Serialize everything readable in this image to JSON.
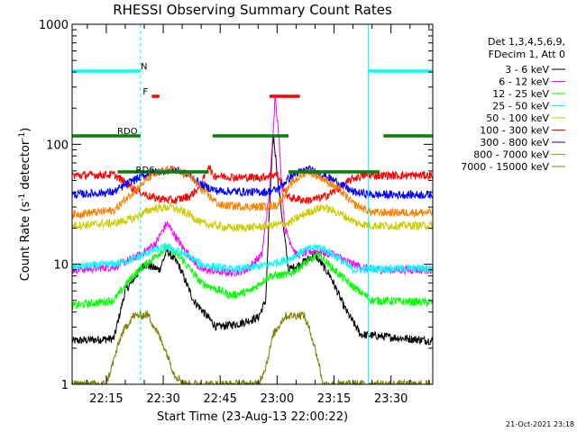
{
  "chart_data": {
    "type": "line",
    "title": "RHESSI Observing Summary Count Rates",
    "xlabel": "Start Time (23-Aug-13 22:00:22)",
    "ylabel_prefix": "Count Rate (s",
    "ylabel_sup1": "-1",
    "ylabel_mid": " detector",
    "ylabel_sup2": "-1",
    "ylabel_suffix": ")",
    "ylog": true,
    "ylim": [
      1,
      1000
    ],
    "xlim_min": [
      6,
      101
    ],
    "yticks": [
      {
        "v": 1,
        "label": "1"
      },
      {
        "v": 10,
        "label": "10"
      },
      {
        "v": 100,
        "label": "100"
      },
      {
        "v": 1000,
        "label": "1000"
      }
    ],
    "xticks": [
      {
        "m": 15,
        "label": "22:15"
      },
      {
        "m": 30,
        "label": "22:30"
      },
      {
        "m": 45,
        "label": "22:45"
      },
      {
        "m": 60,
        "label": "23:00"
      },
      {
        "m": 75,
        "label": "23:15"
      },
      {
        "m": 90,
        "label": "23:30"
      }
    ],
    "legend_header": [
      "Det 1,3,4,5,6,9,",
      "FDecim 1, Att 0"
    ],
    "legend_placement": "right",
    "timestamp": "21-Oct-2021 23:18",
    "state_bars": [
      {
        "label": "N",
        "color": "#00ffff",
        "y": 0.87,
        "ranges": [
          [
            6,
            24
          ],
          [
            84,
            101
          ]
        ]
      },
      {
        "label": "F",
        "color": "#ff0000",
        "y": 0.8,
        "ranges": [
          [
            27,
            29
          ],
          [
            58,
            66
          ]
        ]
      },
      {
        "label": "RDO",
        "color": "#008000",
        "y": 0.69,
        "ranges": [
          [
            6,
            24
          ],
          [
            43,
            63
          ],
          [
            88,
            101
          ]
        ]
      },
      {
        "label": "RD6",
        "color": "#008000",
        "y": 0.59,
        "ranges": [
          [
            18,
            42
          ],
          [
            63,
            87
          ]
        ]
      }
    ],
    "vlines": [
      {
        "m": 6,
        "color": "#00ffff",
        "dashed": false
      },
      {
        "m": 24,
        "color": "#00ffff",
        "dashed": true
      },
      {
        "m": 84,
        "color": "#00ffff",
        "dashed": false
      },
      {
        "m": 101,
        "color": "#00ffff",
        "dashed": true
      }
    ],
    "series": [
      {
        "name": "3 - 6 keV",
        "color": "#000000",
        "points": [
          [
            6,
            2.3
          ],
          [
            17,
            2.4
          ],
          [
            20,
            6
          ],
          [
            25,
            10
          ],
          [
            29,
            9
          ],
          [
            31,
            13
          ],
          [
            34,
            10
          ],
          [
            38,
            5
          ],
          [
            44,
            3
          ],
          [
            50,
            3.2
          ],
          [
            55,
            3.6
          ],
          [
            57,
            5
          ],
          [
            58,
            30
          ],
          [
            59,
            120
          ],
          [
            61,
            30
          ],
          [
            63,
            9
          ],
          [
            66,
            10
          ],
          [
            70,
            12
          ],
          [
            74,
            8
          ],
          [
            78,
            4.2
          ],
          [
            82,
            2.6
          ],
          [
            101,
            2.3
          ]
        ]
      },
      {
        "name": "6 - 12 keV",
        "color": "#ff00ff",
        "points": [
          [
            6,
            9
          ],
          [
            17,
            9.5
          ],
          [
            24,
            12
          ],
          [
            28,
            15
          ],
          [
            31,
            22
          ],
          [
            35,
            14
          ],
          [
            40,
            9
          ],
          [
            48,
            8.5
          ],
          [
            52,
            9
          ],
          [
            56,
            12
          ],
          [
            58,
            40
          ],
          [
            59.5,
            260
          ],
          [
            60.5,
            110
          ],
          [
            62,
            20
          ],
          [
            65,
            12
          ],
          [
            70,
            13
          ],
          [
            75,
            12
          ],
          [
            80,
            10
          ],
          [
            85,
            9
          ],
          [
            101,
            9
          ]
        ]
      },
      {
        "name": "12 - 25 keV",
        "color": "#00ff00",
        "points": [
          [
            6,
            4.5
          ],
          [
            17,
            5
          ],
          [
            22,
            8
          ],
          [
            27,
            11
          ],
          [
            31,
            14
          ],
          [
            35,
            11
          ],
          [
            40,
            7
          ],
          [
            48,
            5.5
          ],
          [
            53,
            6
          ],
          [
            58,
            8
          ],
          [
            63,
            8.2
          ],
          [
            67,
            10
          ],
          [
            71,
            12
          ],
          [
            75,
            9
          ],
          [
            80,
            6.5
          ],
          [
            85,
            5
          ],
          [
            101,
            4.8
          ]
        ]
      },
      {
        "name": "25 - 50 keV",
        "color": "#00ffff",
        "points": [
          [
            6,
            9.5
          ],
          [
            17,
            10
          ],
          [
            22,
            11
          ],
          [
            27,
            13
          ],
          [
            31,
            14
          ],
          [
            36,
            12
          ],
          [
            40,
            10
          ],
          [
            48,
            9
          ],
          [
            54,
            9.5
          ],
          [
            58,
            10
          ],
          [
            63,
            11
          ],
          [
            67,
            13
          ],
          [
            71,
            14
          ],
          [
            75,
            12
          ],
          [
            80,
            9
          ],
          [
            85,
            9.2
          ],
          [
            101,
            9.2
          ]
        ]
      },
      {
        "name": "50 - 100 keV",
        "color": "#cccc00",
        "points": [
          [
            6,
            21
          ],
          [
            17,
            22
          ],
          [
            22,
            24
          ],
          [
            27,
            29
          ],
          [
            32,
            30
          ],
          [
            37,
            26
          ],
          [
            40,
            22
          ],
          [
            48,
            20
          ],
          [
            55,
            20.5
          ],
          [
            58,
            21
          ],
          [
            63,
            22
          ],
          [
            68,
            27
          ],
          [
            72,
            30
          ],
          [
            76,
            27
          ],
          [
            81,
            22
          ],
          [
            85,
            21
          ],
          [
            101,
            21
          ]
        ]
      },
      {
        "name": "100 - 300 keV",
        "color": "#ff0000",
        "points": [
          [
            6,
            55
          ],
          [
            17,
            56
          ],
          [
            22,
            43
          ],
          [
            27,
            36
          ],
          [
            33,
            34
          ],
          [
            37,
            37
          ],
          [
            40,
            45
          ],
          [
            42,
            68
          ],
          [
            43,
            55
          ],
          [
            50,
            53
          ],
          [
            56,
            53
          ],
          [
            58,
            55
          ],
          [
            60,
            56
          ],
          [
            63,
            36
          ],
          [
            68,
            34
          ],
          [
            72,
            36
          ],
          [
            76,
            42
          ],
          [
            80,
            52
          ],
          [
            83,
            55
          ],
          [
            101,
            55
          ]
        ]
      },
      {
        "name": "300 - 800 keV",
        "color": "#0000ff",
        "points": [
          [
            6,
            38
          ],
          [
            17,
            40
          ],
          [
            22,
            50
          ],
          [
            27,
            58
          ],
          [
            33,
            62
          ],
          [
            37,
            55
          ],
          [
            40,
            46
          ],
          [
            44,
            41
          ],
          [
            52,
            40
          ],
          [
            57,
            40
          ],
          [
            60,
            42
          ],
          [
            64,
            55
          ],
          [
            68,
            62
          ],
          [
            72,
            56
          ],
          [
            76,
            48
          ],
          [
            80,
            40
          ],
          [
            85,
            38
          ],
          [
            101,
            38
          ]
        ]
      },
      {
        "name": "800 - 7000 keV",
        "color": "#ff8000",
        "points": [
          [
            6,
            26
          ],
          [
            17,
            28
          ],
          [
            22,
            40
          ],
          [
            27,
            55
          ],
          [
            32,
            62
          ],
          [
            37,
            55
          ],
          [
            40,
            42
          ],
          [
            45,
            31
          ],
          [
            55,
            30
          ],
          [
            60,
            31
          ],
          [
            64,
            48
          ],
          [
            68,
            60
          ],
          [
            72,
            52
          ],
          [
            76,
            43
          ],
          [
            80,
            32
          ],
          [
            85,
            27
          ],
          [
            101,
            27
          ]
        ]
      },
      {
        "name": "7000 - 15000 keV",
        "color": "#808000",
        "points": [
          [
            6,
            1
          ],
          [
            15,
            1
          ],
          [
            17,
            1.6
          ],
          [
            19,
            2.6
          ],
          [
            22,
            3.7
          ],
          [
            26,
            3.8
          ],
          [
            29,
            2.5
          ],
          [
            31,
            1.8
          ],
          [
            33,
            1.2
          ],
          [
            36,
            1
          ],
          [
            55,
            1
          ],
          [
            57,
            1.4
          ],
          [
            59,
            2.6
          ],
          [
            62,
            3.7
          ],
          [
            67,
            3.8
          ],
          [
            69,
            2.6
          ],
          [
            71,
            1.5
          ],
          [
            72,
            1
          ],
          [
            101,
            1
          ]
        ]
      }
    ]
  }
}
